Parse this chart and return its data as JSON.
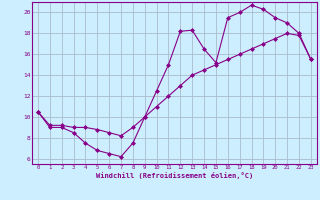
{
  "xlabel": "Windchill (Refroidissement éolien,°C)",
  "bg_color": "#cceeff",
  "grid_color": "#aabbcc",
  "line_color": "#880088",
  "xlim": [
    -0.5,
    23.5
  ],
  "ylim": [
    5.5,
    21.0
  ],
  "xticks": [
    0,
    1,
    2,
    3,
    4,
    5,
    6,
    7,
    8,
    9,
    10,
    11,
    12,
    13,
    14,
    15,
    16,
    17,
    18,
    19,
    20,
    21,
    22,
    23
  ],
  "yticks": [
    6,
    8,
    10,
    12,
    14,
    16,
    18,
    20
  ],
  "line1_x": [
    0,
    1,
    2,
    3,
    4,
    5,
    6,
    7,
    8,
    9,
    10,
    11,
    12,
    13,
    14,
    15,
    16,
    17,
    18,
    19,
    20,
    21,
    22,
    23
  ],
  "line1_y": [
    10.5,
    9.0,
    9.0,
    8.5,
    7.5,
    6.8,
    6.5,
    6.2,
    7.5,
    10.0,
    12.5,
    15.0,
    18.2,
    18.3,
    16.5,
    15.2,
    19.5,
    20.0,
    20.7,
    20.3,
    19.5,
    19.0,
    18.0,
    15.5
  ],
  "line2_x": [
    0,
    1,
    2,
    3,
    4,
    5,
    6,
    7,
    8,
    9,
    10,
    11,
    12,
    13,
    14,
    15,
    16,
    17,
    18,
    19,
    20,
    21,
    22,
    23
  ],
  "line2_y": [
    10.5,
    9.2,
    9.2,
    9.0,
    9.0,
    8.8,
    8.5,
    8.2,
    9.0,
    10.0,
    11.0,
    12.0,
    13.0,
    14.0,
    14.5,
    15.0,
    15.5,
    16.0,
    16.5,
    17.0,
    17.5,
    18.0,
    17.8,
    15.5
  ]
}
